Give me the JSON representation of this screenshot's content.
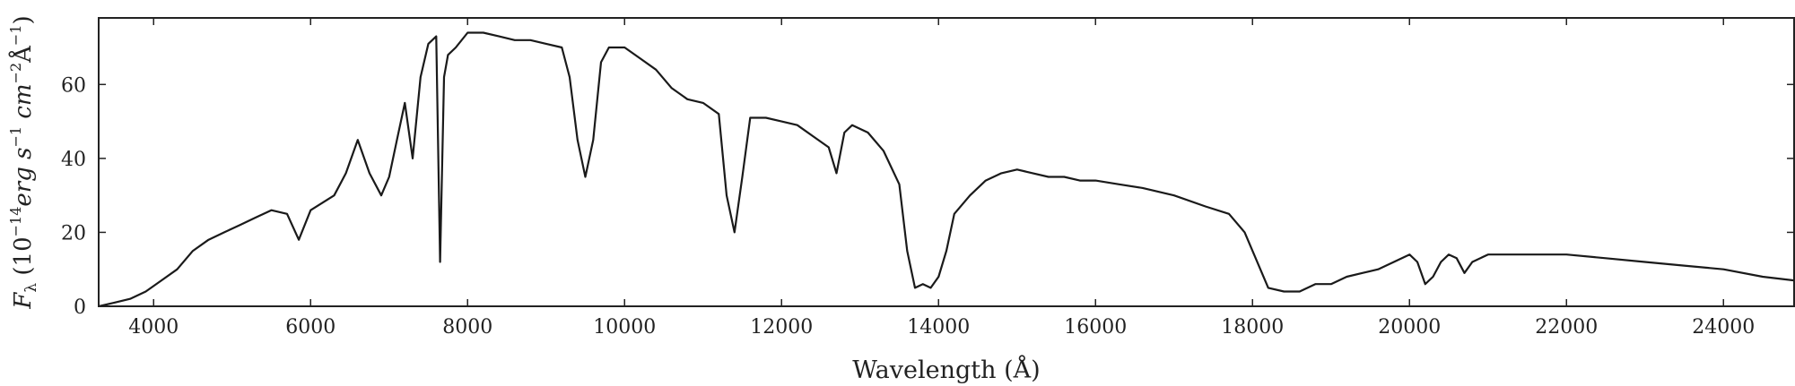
{
  "chart_data": {
    "type": "line",
    "title": "",
    "xlabel": "Wavelength (Å)",
    "ylabel": {
      "symbol": "F",
      "symbol_sub": "λ",
      "open": "(10",
      "exp1": "−14",
      "erg": "erg s",
      "exp2": "−1",
      "cm": "cm",
      "exp3": "−2",
      "angstrom": "Å",
      "exp4": "−1",
      "close": ")"
    },
    "xlim": [
      3300,
      24900
    ],
    "ylim": [
      0,
      78
    ],
    "xticks": [
      4000,
      6000,
      8000,
      10000,
      12000,
      14000,
      16000,
      18000,
      20000,
      22000,
      24000
    ],
    "yticks": [
      0,
      20,
      40,
      60
    ],
    "grid": false,
    "legend": "none",
    "line_color": "#1a1a1a",
    "series": [
      {
        "x": [
          3300,
          3500,
          3700,
          3900,
          4100,
          4300,
          4500,
          4700,
          4900,
          5100,
          5300,
          5500,
          5700,
          5850,
          6000,
          6150,
          6300,
          6450,
          6600,
          6750,
          6900,
          7000,
          7100,
          7200,
          7300,
          7400,
          7500,
          7600,
          7650,
          7700,
          7750,
          7850,
          8000,
          8200,
          8400,
          8600,
          8800,
          9000,
          9200,
          9300,
          9400,
          9500,
          9600,
          9700,
          9800,
          10000,
          10200,
          10400,
          10600,
          10800,
          11000,
          11200,
          11300,
          11400,
          11500,
          11600,
          11800,
          12000,
          12200,
          12400,
          12600,
          12700,
          12800,
          12900,
          13100,
          13300,
          13500,
          13600,
          13700,
          13800,
          13900,
          14000,
          14100,
          14200,
          14400,
          14600,
          14800,
          15000,
          15200,
          15400,
          15600,
          15800,
          16000,
          16300,
          16600,
          17000,
          17400,
          17700,
          17900,
          18100,
          18200,
          18400,
          18600,
          18800,
          19000,
          19200,
          19400,
          19600,
          19800,
          20000,
          20100,
          20200,
          20300,
          20400,
          20500,
          20600,
          20700,
          20800,
          21000,
          21500,
          22000,
          22500,
          23000,
          23500,
          24000,
          24500,
          24900
        ],
        "y": [
          0,
          1,
          2,
          4,
          7,
          10,
          15,
          18,
          20,
          22,
          24,
          26,
          25,
          18,
          26,
          28,
          30,
          36,
          45,
          36,
          30,
          35,
          45,
          55,
          40,
          62,
          71,
          73,
          12,
          62,
          68,
          70,
          74,
          74,
          73,
          72,
          72,
          71,
          70,
          62,
          45,
          35,
          45,
          66,
          70,
          70,
          67,
          64,
          59,
          56,
          55,
          52,
          30,
          20,
          35,
          51,
          51,
          50,
          49,
          46,
          43,
          36,
          47,
          49,
          47,
          42,
          33,
          15,
          5,
          6,
          5,
          8,
          15,
          25,
          30,
          34,
          36,
          37,
          36,
          35,
          35,
          34,
          34,
          33,
          32,
          30,
          27,
          25,
          20,
          10,
          5,
          4,
          4,
          6,
          6,
          8,
          9,
          10,
          12,
          14,
          12,
          6,
          8,
          12,
          14,
          13,
          9,
          12,
          14,
          14,
          14,
          13,
          12,
          11,
          10,
          8,
          7
        ]
      }
    ]
  }
}
